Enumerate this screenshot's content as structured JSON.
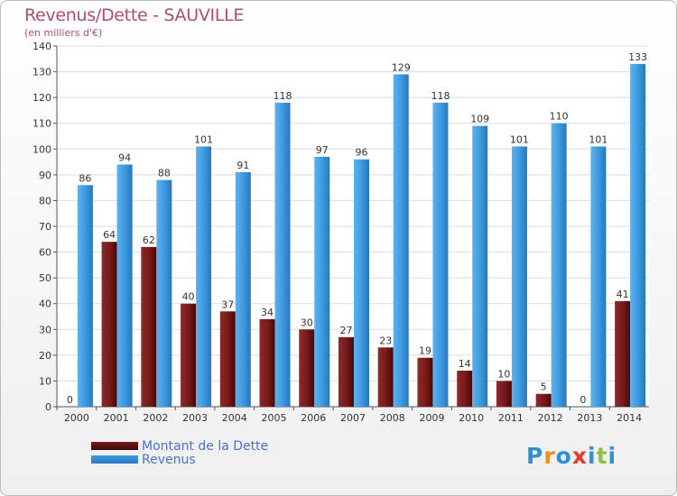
{
  "title": "Revenus/Dette - SAUVILLE",
  "subtitle": "(en milliers d'€)",
  "logo": {
    "text": "Proxiti",
    "colors": [
      "#2f8fd4",
      "#f08a1c",
      "#2f8fd4",
      "#e6372b",
      "#2f8fd4",
      "#8cc43d",
      "#2f8fd4"
    ]
  },
  "legend": [
    {
      "label": "Montant de la Dette",
      "color": "#7a1b1b"
    },
    {
      "label": "Revenus",
      "color": "#3d9be0"
    }
  ],
  "chart_data": {
    "type": "bar",
    "title": "Revenus/Dette - SAUVILLE",
    "subtitle": "(en milliers d'€)",
    "categories": [
      "2000",
      "2001",
      "2002",
      "2003",
      "2004",
      "2005",
      "2006",
      "2007",
      "2008",
      "2009",
      "2010",
      "2011",
      "2012",
      "2013",
      "2014"
    ],
    "series": [
      {
        "name": "Montant de la Dette",
        "color": "#7a1b1b",
        "values": [
          0,
          64,
          62,
          40,
          37,
          34,
          30,
          27,
          23,
          19,
          14,
          10,
          5,
          0,
          41
        ]
      },
      {
        "name": "Revenus",
        "color": "#3d9be0",
        "values": [
          86,
          94,
          88,
          101,
          91,
          118,
          97,
          96,
          129,
          118,
          109,
          101,
          110,
          101,
          133
        ]
      }
    ],
    "ylim": [
      0,
      140
    ],
    "yticks": [
      0,
      10,
      20,
      30,
      40,
      50,
      60,
      70,
      80,
      90,
      100,
      110,
      120,
      130,
      140
    ],
    "grid": true,
    "legend_position": "bottom-left"
  }
}
